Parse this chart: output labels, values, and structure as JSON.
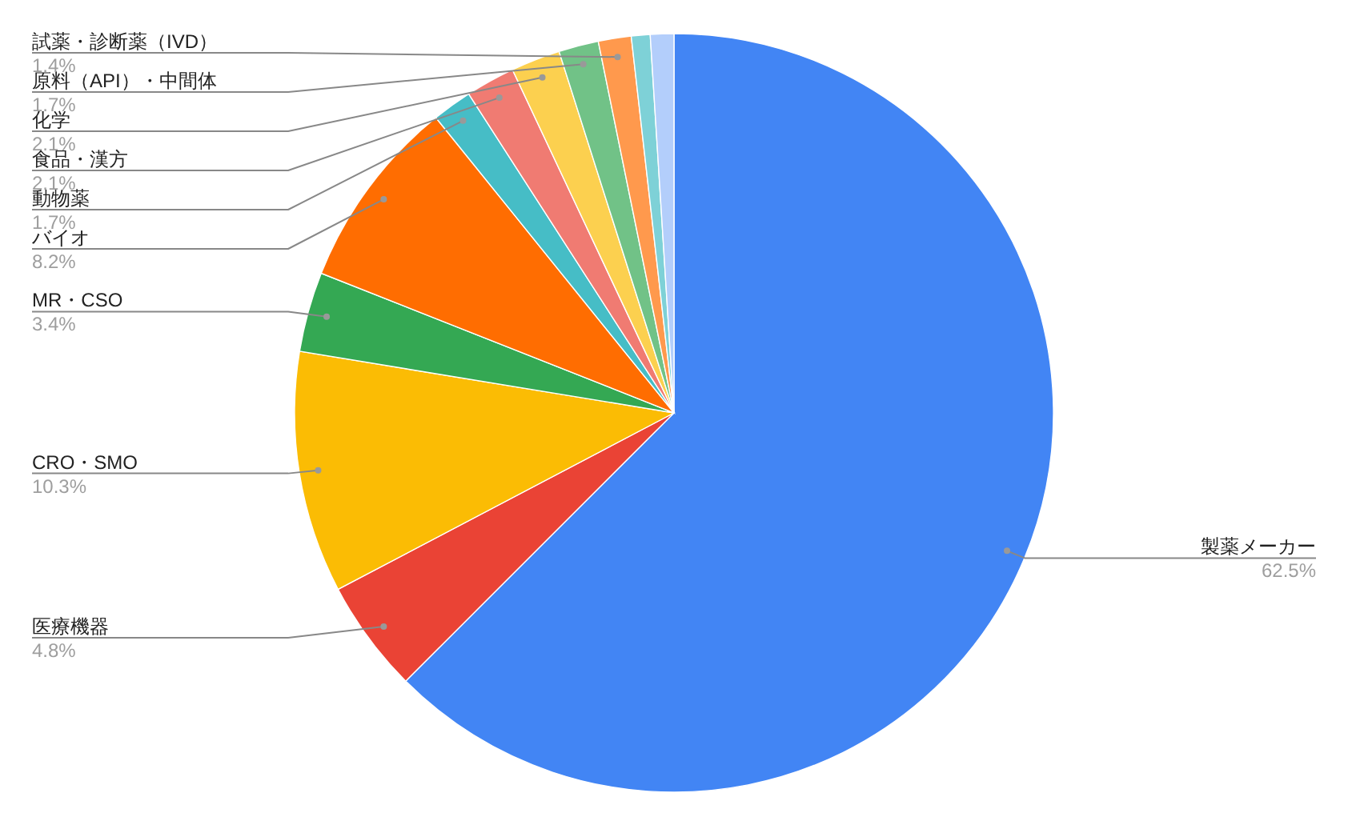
{
  "chart_data": {
    "type": "pie",
    "categories": [
      "製薬メーカー",
      "医療機器",
      "CRO・SMO",
      "MR・CSO",
      "バイオ",
      "動物薬",
      "食品・漢方",
      "化学",
      "原料（API）・中間体",
      "試薬・診断薬（IVD）",
      null,
      null
    ],
    "values": [
      62.5,
      4.8,
      10.3,
      3.4,
      8.2,
      1.7,
      2.1,
      2.1,
      1.7,
      1.4,
      0.8,
      1.0
    ],
    "value_labels": [
      "62.5%",
      "4.8%",
      "10.3%",
      "3.4%",
      "8.2%",
      "1.7%",
      "2.1%",
      "2.1%",
      "1.7%",
      "1.4%",
      null,
      null
    ],
    "colors": [
      "#4285f4",
      "#ea4335",
      "#fbbc04",
      "#34a853",
      "#ff6d01",
      "#46bdc6",
      "#f07b72",
      "#fcd04f",
      "#71c287",
      "#ff994d",
      "#7ed1d7",
      "#b3cefb"
    ]
  }
}
